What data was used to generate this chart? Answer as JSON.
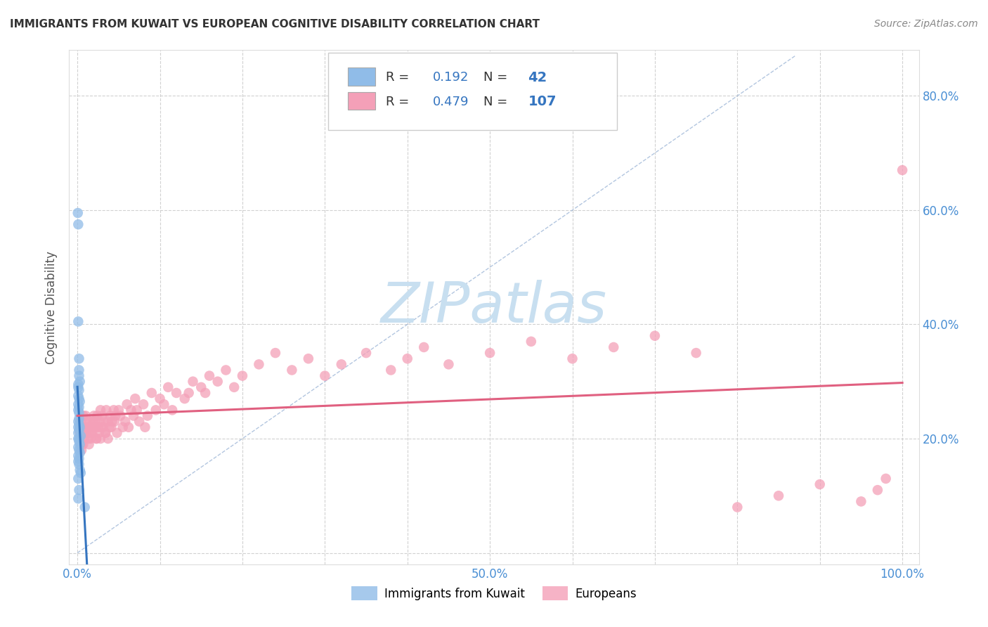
{
  "title": "IMMIGRANTS FROM KUWAIT VS EUROPEAN COGNITIVE DISABILITY CORRELATION CHART",
  "source_text": "Source: ZipAtlas.com",
  "ylabel": "Cognitive Disability",
  "xlim": [
    -0.01,
    1.02
  ],
  "ylim": [
    -0.02,
    0.88
  ],
  "watermark_text": "ZIPatlas",
  "watermark_color": "#c8dff0",
  "background_color": "#ffffff",
  "grid_color": "#cccccc",
  "title_color": "#333333",
  "axis_label_color": "#555555",
  "tick_label_color": "#4a8fd4",
  "scatter_kuwait_color": "#90bce8",
  "scatter_europe_color": "#f4a0b8",
  "diag_line_color": "#a0b8d8",
  "trend_kuwait_color": "#3575c0",
  "trend_europe_color": "#e06080",
  "legend_text_color": "#333333",
  "legend_val_color": "#3575c0",
  "kuwait_x": [
    0.0005,
    0.001,
    0.001,
    0.002,
    0.002,
    0.002,
    0.003,
    0.001,
    0.001,
    0.002,
    0.001,
    0.002,
    0.003,
    0.001,
    0.002,
    0.001,
    0.002,
    0.002,
    0.001,
    0.002,
    0.003,
    0.001,
    0.002,
    0.001,
    0.004,
    0.002,
    0.001,
    0.002,
    0.003,
    0.001,
    0.002,
    0.003,
    0.001,
    0.002,
    0.001,
    0.002,
    0.003,
    0.004,
    0.002,
    0.001,
    0.009,
    0.001
  ],
  "kuwait_y": [
    0.595,
    0.575,
    0.405,
    0.34,
    0.32,
    0.31,
    0.3,
    0.295,
    0.29,
    0.285,
    0.275,
    0.27,
    0.265,
    0.26,
    0.255,
    0.25,
    0.245,
    0.235,
    0.23,
    0.225,
    0.22,
    0.22,
    0.215,
    0.21,
    0.205,
    0.2,
    0.2,
    0.195,
    0.19,
    0.185,
    0.18,
    0.175,
    0.17,
    0.165,
    0.16,
    0.155,
    0.145,
    0.14,
    0.11,
    0.095,
    0.08,
    0.13
  ],
  "europe_x": [
    0.003,
    0.005,
    0.004,
    0.006,
    0.007,
    0.005,
    0.008,
    0.006,
    0.009,
    0.007,
    0.01,
    0.011,
    0.012,
    0.013,
    0.01,
    0.014,
    0.015,
    0.016,
    0.014,
    0.017,
    0.018,
    0.016,
    0.019,
    0.02,
    0.018,
    0.022,
    0.023,
    0.021,
    0.024,
    0.025,
    0.023,
    0.027,
    0.028,
    0.026,
    0.029,
    0.03,
    0.028,
    0.032,
    0.034,
    0.031,
    0.035,
    0.037,
    0.034,
    0.039,
    0.04,
    0.037,
    0.042,
    0.044,
    0.041,
    0.046,
    0.048,
    0.045,
    0.05,
    0.055,
    0.052,
    0.06,
    0.058,
    0.065,
    0.062,
    0.07,
    0.068,
    0.075,
    0.072,
    0.08,
    0.085,
    0.082,
    0.09,
    0.095,
    0.1,
    0.11,
    0.105,
    0.12,
    0.115,
    0.13,
    0.14,
    0.135,
    0.15,
    0.16,
    0.155,
    0.17,
    0.18,
    0.19,
    0.2,
    0.22,
    0.24,
    0.26,
    0.28,
    0.3,
    0.32,
    0.35,
    0.38,
    0.4,
    0.42,
    0.45,
    0.5,
    0.55,
    0.6,
    0.65,
    0.7,
    0.75,
    0.8,
    0.85,
    0.9,
    0.95,
    0.97,
    0.98,
    1.0
  ],
  "europe_y": [
    0.21,
    0.19,
    0.23,
    0.22,
    0.24,
    0.18,
    0.2,
    0.21,
    0.22,
    0.19,
    0.21,
    0.23,
    0.22,
    0.2,
    0.24,
    0.21,
    0.23,
    0.22,
    0.19,
    0.21,
    0.22,
    0.2,
    0.23,
    0.24,
    0.21,
    0.22,
    0.2,
    0.23,
    0.24,
    0.22,
    0.2,
    0.23,
    0.25,
    0.21,
    0.22,
    0.24,
    0.2,
    0.23,
    0.21,
    0.22,
    0.25,
    0.23,
    0.21,
    0.22,
    0.24,
    0.2,
    0.23,
    0.25,
    0.22,
    0.24,
    0.21,
    0.23,
    0.25,
    0.22,
    0.24,
    0.26,
    0.23,
    0.25,
    0.22,
    0.27,
    0.24,
    0.23,
    0.25,
    0.26,
    0.24,
    0.22,
    0.28,
    0.25,
    0.27,
    0.29,
    0.26,
    0.28,
    0.25,
    0.27,
    0.3,
    0.28,
    0.29,
    0.31,
    0.28,
    0.3,
    0.32,
    0.29,
    0.31,
    0.33,
    0.35,
    0.32,
    0.34,
    0.31,
    0.33,
    0.35,
    0.32,
    0.34,
    0.36,
    0.33,
    0.35,
    0.37,
    0.34,
    0.36,
    0.38,
    0.35,
    0.08,
    0.1,
    0.12,
    0.09,
    0.11,
    0.13,
    0.67
  ],
  "x_ticks": [
    0.0,
    0.1,
    0.2,
    0.3,
    0.4,
    0.5,
    0.6,
    0.7,
    0.8,
    0.9,
    1.0
  ],
  "x_tick_labels": [
    "0.0%",
    "",
    "",
    "",
    "",
    "50.0%",
    "",
    "",
    "",
    "",
    "100.0%"
  ],
  "y_ticks": [
    0.0,
    0.2,
    0.4,
    0.6,
    0.8
  ],
  "y_tick_labels_right": [
    "",
    "20.0%",
    "40.0%",
    "60.0%",
    "80.0%"
  ]
}
